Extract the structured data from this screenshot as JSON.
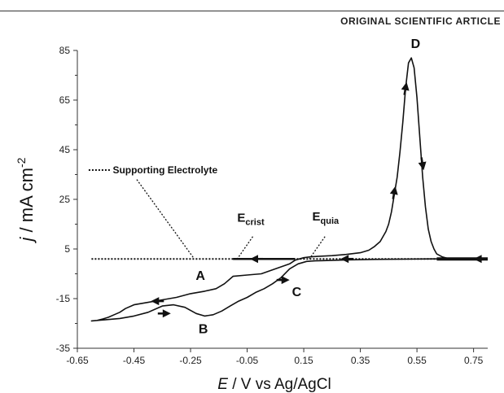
{
  "header": {
    "label": "ORIGINAL SCIENTIFIC ARTICLE"
  },
  "colors": {
    "line": "#111111",
    "axis": "#333333"
  },
  "chart_data": {
    "type": "line",
    "title": "",
    "xlabel": {
      "italic": "E",
      "rest": " / V vs Ag/AgCl"
    },
    "ylabel": {
      "italic": "j",
      "rest": " / mA cm",
      "sup": "-2"
    },
    "xlim": [
      -0.65,
      0.8
    ],
    "ylim": [
      -35,
      85
    ],
    "xticks": [
      -0.65,
      -0.45,
      -0.25,
      -0.05,
      0.15,
      0.35,
      0.55,
      0.75
    ],
    "xtick_labels": [
      "-0.65",
      "-0.45",
      "-0.25",
      "-0.05",
      "0.15",
      "0.35",
      "0.55",
      "0.75"
    ],
    "yticks": [
      85,
      65,
      45,
      25,
      5,
      -15,
      -35
    ],
    "ytick_labels": [
      "85",
      "65",
      "45",
      "25",
      "5",
      "-15",
      "-35"
    ],
    "grid": false,
    "series": [
      {
        "name": "Supporting Electrolyte",
        "style": "dotted",
        "x": [
          -0.6,
          -0.4,
          -0.2,
          0.0,
          0.2,
          0.4,
          0.6,
          0.8
        ],
        "y": [
          1,
          1,
          1,
          1,
          1,
          1,
          1,
          1
        ]
      },
      {
        "style": "solid",
        "x": [
          0.8,
          0.7,
          0.66,
          0.64,
          0.62,
          0.61,
          0.6,
          0.59,
          0.58,
          0.57,
          0.56,
          0.55,
          0.54,
          0.53,
          0.52,
          0.51,
          0.5,
          0.49,
          0.48,
          0.47,
          0.46,
          0.45,
          0.44,
          0.42,
          0.4,
          0.38,
          0.35,
          0.3,
          0.25,
          0.2,
          0.17,
          0.15,
          0.12,
          0.1,
          0.05,
          0.0,
          -0.05,
          -0.1,
          -0.13,
          -0.16,
          -0.2,
          -0.25,
          -0.3,
          -0.35,
          -0.4,
          -0.45,
          -0.48,
          -0.5,
          -0.52,
          -0.54,
          -0.56,
          -0.58,
          -0.6,
          -0.55,
          -0.5,
          -0.45,
          -0.4,
          -0.35,
          -0.31,
          -0.27,
          -0.23,
          -0.2,
          -0.17,
          -0.14,
          -0.11,
          -0.08,
          -0.05,
          -0.02,
          0.01,
          0.04,
          0.07,
          0.1,
          0.13,
          0.16,
          0.19,
          0.22,
          0.3,
          0.4,
          0.6,
          0.8
        ],
        "y": [
          1,
          1,
          1.2,
          1.8,
          3,
          5,
          8,
          13,
          22,
          34,
          50,
          66,
          78,
          82,
          80,
          70,
          56,
          44,
          34,
          27,
          20,
          15,
          12,
          8,
          6,
          4.5,
          3.5,
          2.8,
          2.3,
          2,
          1.8,
          1.5,
          0.5,
          -1,
          -3,
          -5,
          -5.5,
          -6,
          -9,
          -11,
          -12,
          -13,
          -14.5,
          -15.5,
          -16.5,
          -17.5,
          -19,
          -20.5,
          -21.5,
          -22.5,
          -23.2,
          -23.8,
          -24,
          -23.5,
          -23,
          -22,
          -20.5,
          -18,
          -17.5,
          -18.5,
          -21,
          -22,
          -21.5,
          -20,
          -18,
          -16,
          -14.5,
          -12.5,
          -11,
          -9,
          -6.5,
          -3,
          -1,
          0,
          0.2,
          0.3,
          0.6,
          0.8,
          1,
          1
        ]
      }
    ],
    "arrows": [
      {
        "x": 0.77,
        "y": 1,
        "dir": "left"
      },
      {
        "x": 0.3,
        "y": 1,
        "dir": "left"
      },
      {
        "x": -0.02,
        "y": 1,
        "dir": "left"
      },
      {
        "x": 0.57,
        "y": 39,
        "dir": "down"
      },
      {
        "x": 0.47,
        "y": 28,
        "dir": "up"
      },
      {
        "x": 0.51,
        "y": 70,
        "dir": "up"
      },
      {
        "x": -0.37,
        "y": -16,
        "dir": "left"
      },
      {
        "x": -0.34,
        "y": -21,
        "dir": "right"
      },
      {
        "x": 0.08,
        "y": -7.5,
        "dir": "right"
      }
    ],
    "annotations": [
      {
        "text": "A",
        "x": -0.215,
        "y": -7.5,
        "size": 16
      },
      {
        "text": "B",
        "x": -0.205,
        "y": -29,
        "size": 16
      },
      {
        "text": "C",
        "x": 0.125,
        "y": -14,
        "size": 16
      },
      {
        "text": "D",
        "x": 0.545,
        "y": 86,
        "size": 16
      }
    ],
    "legend_label": {
      "text": "Supporting Electrolyte",
      "x": -0.525,
      "y": 35.5,
      "line_from": -0.61,
      "line_to": -0.53
    },
    "labels": [
      {
        "text": "E",
        "sub": "crist",
        "x": -0.085,
        "y": 16,
        "leader": [
          [
            -0.03,
            10
          ],
          [
            -0.085,
            1
          ]
        ]
      },
      {
        "text": "E",
        "sub": "quia",
        "x": 0.18,
        "y": 16.5,
        "leader": [
          [
            0.225,
            10
          ],
          [
            0.17,
            1
          ]
        ]
      }
    ],
    "legend_leader": [
      [
        -0.44,
        33
      ],
      [
        -0.24,
        1.5
      ]
    ]
  }
}
